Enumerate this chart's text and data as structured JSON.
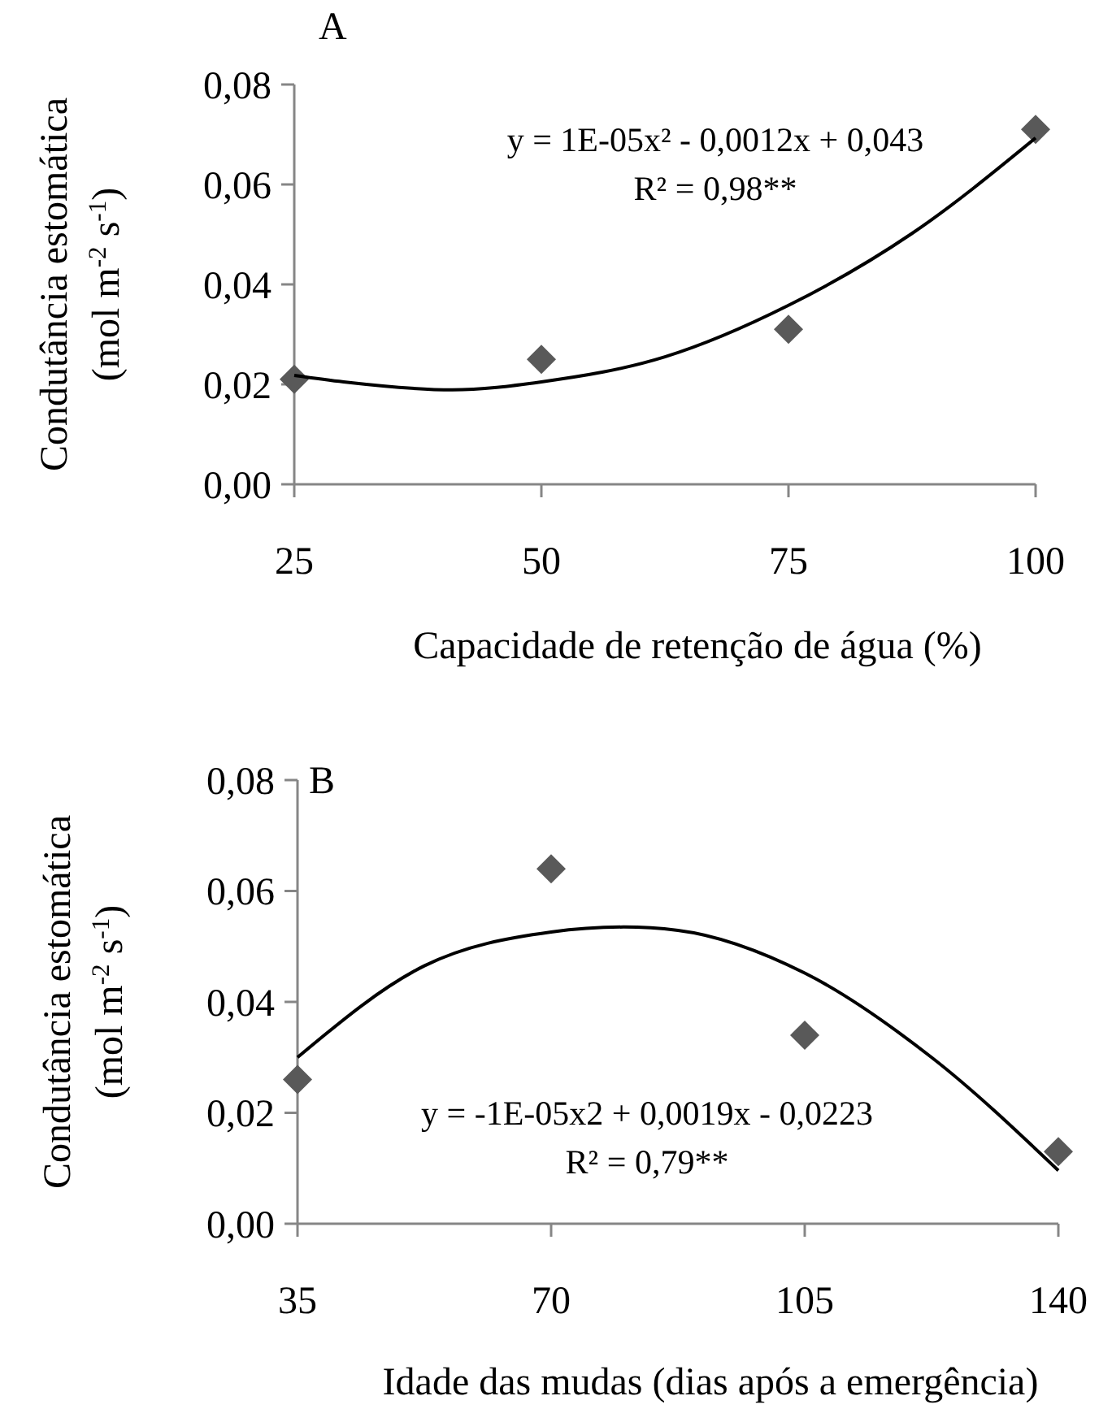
{
  "chart_data": [
    {
      "type": "scatter",
      "title": "A",
      "xlabel": "Capacidade de retenção de água (%)",
      "ylabel": "Condutância estomática (mol m$^{-2}$ s$^{-1}$)",
      "annotations": [
        "y = 1E-05x² - 0,0012x + 0,043",
        "R² = 0,98**"
      ],
      "xlim": [
        25,
        100
      ],
      "xticks": [
        25,
        50,
        75,
        100
      ],
      "ylim": [
        0,
        0.08
      ],
      "yticks": [
        {
          "value": 0,
          "label": "0,00"
        },
        {
          "value": 0.02,
          "label": "0,02"
        },
        {
          "value": 0.04,
          "label": "0,04"
        },
        {
          "value": 0.06,
          "label": "0,06"
        },
        {
          "value": 0.08,
          "label": "0,08"
        }
      ],
      "series": [
        {
          "type": "scatter",
          "color": "#595959",
          "marker": "diamond",
          "x": [
            25,
            50,
            75,
            100
          ],
          "values": [
            0.021,
            0.025,
            0.031,
            0.071
          ]
        },
        {
          "type": "line",
          "color": "#000000",
          "marker": "none",
          "x": [
            25,
            30,
            41,
            50,
            62.5,
            75,
            87.5,
            100
          ],
          "values": [
            0.0218,
            0.0205,
            0.0189,
            0.0205,
            0.0255,
            0.0358,
            0.0502,
            0.0693
          ]
        }
      ]
    },
    {
      "type": "scatter",
      "title": "B",
      "xlabel": "Idade das mudas (dias após a emergência)",
      "ylabel": "Condutância estomática (mol m$^{-2}$ s$^{-1}$)",
      "annotations": [
        "y = -1E-05x2 + 0,0019x - 0,0223",
        "R² = 0,79**"
      ],
      "xlim": [
        35,
        140
      ],
      "xticks": [
        35,
        70,
        105,
        140
      ],
      "ylim": [
        0,
        0.08
      ],
      "yticks": [
        {
          "value": 0,
          "label": "0,00"
        },
        {
          "value": 0.02,
          "label": "0,02"
        },
        {
          "value": 0.04,
          "label": "0,04"
        },
        {
          "value": 0.06,
          "label": "0,06"
        },
        {
          "value": 0.08,
          "label": "0,08"
        }
      ],
      "series": [
        {
          "type": "scatter",
          "color": "#595959",
          "marker": "diamond",
          "x": [
            35,
            70,
            105,
            140
          ],
          "values": [
            0.026,
            0.064,
            0.034,
            0.013
          ]
        },
        {
          "type": "line",
          "color": "#000000",
          "marker": "none",
          "x": [
            35,
            52.5,
            70,
            80,
            87.5,
            105,
            122.5,
            140
          ],
          "values": [
            0.03,
            0.0465,
            0.0526,
            0.0535,
            0.0529,
            0.0452,
            0.03,
            0.0096
          ]
        }
      ]
    }
  ]
}
